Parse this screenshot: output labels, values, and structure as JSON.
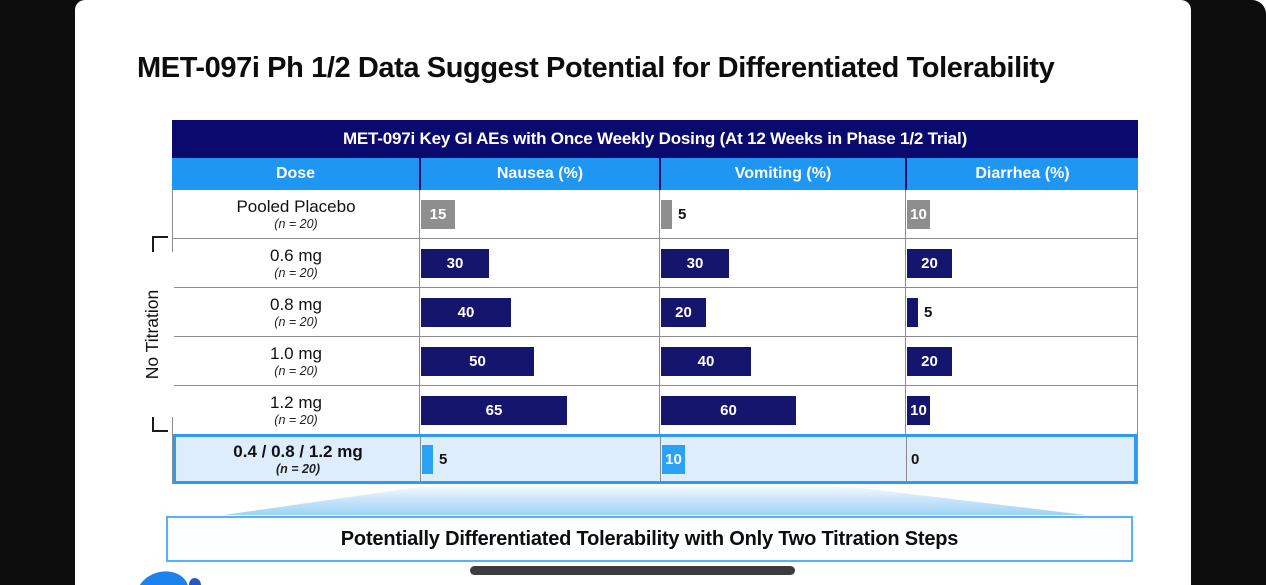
{
  "slide": {
    "title": "MET-097i Ph 1/2 Data Suggest Potential for Differentiated Tolerability",
    "callout": "Potentially Differentiated Tolerability with Only Two Titration Steps"
  },
  "table": {
    "title": "MET-097i Key GI AEs with Once Weekly Dosing (At 12 Weeks in Phase 1/2 Trial)",
    "columns": [
      "Dose",
      "Nausea (%)",
      "Vomiting (%)",
      "Diarrhea (%)"
    ],
    "side_label": "No Titration",
    "rows": [
      {
        "dose": "Pooled Placebo",
        "n": "(n = 20)",
        "nausea": 15,
        "vomiting": 5,
        "diarrhea": 10,
        "bar": "gray",
        "highlight": false
      },
      {
        "dose": "0.6 mg",
        "n": "(n = 20)",
        "nausea": 30,
        "vomiting": 30,
        "diarrhea": 20,
        "bar": "navy",
        "highlight": false
      },
      {
        "dose": "0.8 mg",
        "n": "(n = 20)",
        "nausea": 40,
        "vomiting": 20,
        "diarrhea": 5,
        "bar": "navy",
        "highlight": false
      },
      {
        "dose": "1.0 mg",
        "n": "(n = 20)",
        "nausea": 50,
        "vomiting": 40,
        "diarrhea": 20,
        "bar": "navy",
        "highlight": false
      },
      {
        "dose": "1.2 mg",
        "n": "(n = 20)",
        "nausea": 65,
        "vomiting": 60,
        "diarrhea": 10,
        "bar": "navy",
        "highlight": false
      },
      {
        "dose": "0.4 / 0.8 / 1.2 mg",
        "n": "(n = 20)",
        "nausea": 5,
        "vomiting": 10,
        "diarrhea": 0,
        "bar": "blue",
        "highlight": true
      }
    ]
  },
  "chart_data": {
    "type": "bar",
    "title": "MET-097i Key GI AEs with Once Weekly Dosing (At 12 Weeks in Phase 1/2 Trial)",
    "categories": [
      "Pooled Placebo (n = 20)",
      "0.6 mg (n = 20)",
      "0.8 mg (n = 20)",
      "1.0 mg (n = 20)",
      "1.2 mg (n = 20)",
      "0.4 / 0.8 / 1.2 mg (n = 20)"
    ],
    "series": [
      {
        "name": "Nausea (%)",
        "values": [
          15,
          30,
          40,
          50,
          65,
          5
        ]
      },
      {
        "name": "Vomiting (%)",
        "values": [
          5,
          30,
          20,
          40,
          60,
          10
        ]
      },
      {
        "name": "Diarrhea (%)",
        "values": [
          10,
          20,
          5,
          20,
          10,
          0
        ]
      }
    ],
    "xlim": [
      0,
      100
    ],
    "orientation": "horizontal",
    "annotation": "No Titration bracket spans 0.6 mg through 1.2 mg rows; final row highlighted as two-step titration"
  },
  "colors": {
    "navy": "#0a0a6e",
    "header_blue": "#1e96f2",
    "bar_navy": "#15156d",
    "bar_gray": "#8e8e8e",
    "bar_blue": "#29a2f5",
    "highlight_bg": "#ddedfb",
    "highlight_border": "#2e9bf0",
    "callout_border": "#55b2f4",
    "title_text": "#0d0d0d",
    "frame_black": "#0d0d0d"
  }
}
